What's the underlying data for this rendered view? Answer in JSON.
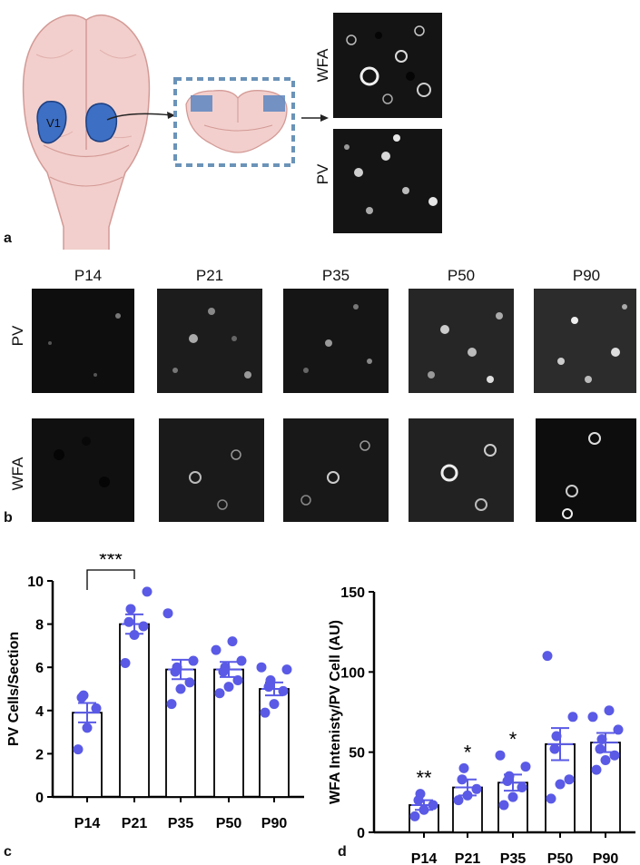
{
  "panel_a": {
    "letter": "a",
    "region_label": "V1",
    "channels": [
      "WFA",
      "PV"
    ]
  },
  "panel_b": {
    "letter": "b",
    "ages": [
      "P14",
      "P21",
      "P35",
      "P50",
      "P90"
    ],
    "rows": [
      "PV",
      "WFA"
    ]
  },
  "colors": {
    "dot": "#5a5ae6",
    "bar_edge": "#000000",
    "v1": "#3d6fc4"
  },
  "chart_data": [
    {
      "panel": "c",
      "type": "bar",
      "categories": [
        "P14",
        "P21",
        "P35",
        "P50",
        "P90"
      ],
      "values": [
        3.9,
        8.0,
        5.9,
        5.9,
        5.0
      ],
      "sem": [
        0.45,
        0.45,
        0.45,
        0.35,
        0.3
      ],
      "points": [
        [
          2.2,
          3.2,
          4.1,
          4.6,
          4.7
        ],
        [
          6.2,
          7.5,
          7.9,
          8.1,
          8.7,
          9.5
        ],
        [
          4.3,
          5.0,
          5.3,
          5.8,
          6.0,
          6.3,
          8.5
        ],
        [
          4.8,
          5.1,
          5.4,
          5.8,
          6.0,
          6.3,
          6.8,
          7.2
        ],
        [
          3.9,
          4.3,
          4.9,
          5.1,
          5.4,
          5.9,
          6.0
        ]
      ],
      "ylabel": "PV Cells/Section",
      "ylim": [
        0,
        10
      ],
      "yticks": [
        "0",
        "2",
        "4",
        "6",
        "8",
        "10"
      ],
      "significance": {
        "label": "***",
        "between": [
          "P14",
          "P21"
        ]
      }
    },
    {
      "panel": "d",
      "type": "bar",
      "categories": [
        "P14",
        "P21",
        "P35",
        "P50",
        "P90"
      ],
      "values": [
        17,
        28,
        31,
        55,
        56
      ],
      "sem": [
        3,
        5,
        5,
        10,
        6
      ],
      "points": [
        [
          10,
          14,
          17,
          20,
          24
        ],
        [
          20,
          23,
          27,
          33,
          40
        ],
        [
          17,
          22,
          28,
          32,
          35,
          41,
          48
        ],
        [
          21,
          30,
          33,
          52,
          60,
          72,
          110
        ],
        [
          39,
          45,
          48,
          52,
          58,
          64,
          72,
          76
        ]
      ],
      "ylabel": "WFA Intenisty/PV Cell (AU)",
      "ylim": [
        0,
        150
      ],
      "yticks": [
        "0",
        "50",
        "100",
        "150"
      ],
      "stars": [
        "**",
        "*",
        "*",
        "",
        ""
      ]
    }
  ],
  "panel_letters": {
    "c": "c",
    "d": "d"
  }
}
